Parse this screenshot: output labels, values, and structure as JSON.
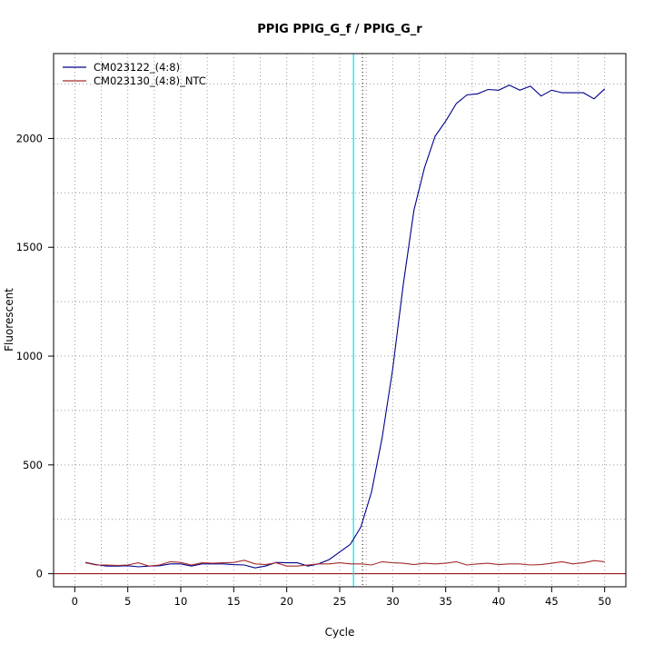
{
  "chart_data": {
    "type": "line",
    "title": "PPIG  PPIG_G_f / PPIG_G_r",
    "xlabel": "Cycle",
    "ylabel": "Fluorescent",
    "xlim": [
      -2,
      52
    ],
    "ylim": [
      -60,
      2390
    ],
    "x_ticks": [
      0,
      5,
      10,
      15,
      20,
      25,
      30,
      35,
      40,
      45,
      50
    ],
    "y_ticks": [
      0,
      500,
      1000,
      1500,
      2000
    ],
    "grid": true,
    "threshold_cycle": 26.3,
    "legend_position": "top-left",
    "x": [
      1,
      2,
      3,
      4,
      5,
      6,
      7,
      8,
      9,
      10,
      11,
      12,
      13,
      14,
      15,
      16,
      17,
      18,
      19,
      20,
      21,
      22,
      23,
      24,
      25,
      26,
      27,
      28,
      29,
      30,
      31,
      32,
      33,
      34,
      35,
      36,
      37,
      38,
      39,
      40,
      41,
      42,
      43,
      44,
      45,
      46,
      47,
      48,
      49,
      50
    ],
    "series": [
      {
        "name": "CM023122_(4:8)",
        "color": "#00008b",
        "values": [
          52,
          42,
          35,
          35,
          37,
          32,
          35,
          37,
          45,
          45,
          35,
          45,
          45,
          45,
          42,
          40,
          27,
          35,
          52,
          50,
          50,
          35,
          45,
          65,
          100,
          135,
          215,
          375,
          625,
          940,
          1330,
          1670,
          1865,
          2010,
          2080,
          2160,
          2200,
          2205,
          2225,
          2222,
          2245,
          2222,
          2240,
          2195,
          2222,
          2210,
          2210,
          2210,
          2182,
          2228
        ]
      },
      {
        "name": "CM023130_(4:8)_NTC",
        "color": "#a52a2a",
        "values": [
          50,
          40,
          40,
          38,
          40,
          50,
          35,
          40,
          55,
          52,
          40,
          50,
          48,
          50,
          52,
          62,
          45,
          42,
          50,
          35,
          35,
          40,
          45,
          45,
          50,
          45,
          45,
          40,
          55,
          50,
          48,
          42,
          48,
          45,
          48,
          55,
          40,
          45,
          48,
          42,
          45,
          45,
          40,
          42,
          48,
          55,
          45,
          50,
          60,
          55
        ]
      }
    ]
  }
}
